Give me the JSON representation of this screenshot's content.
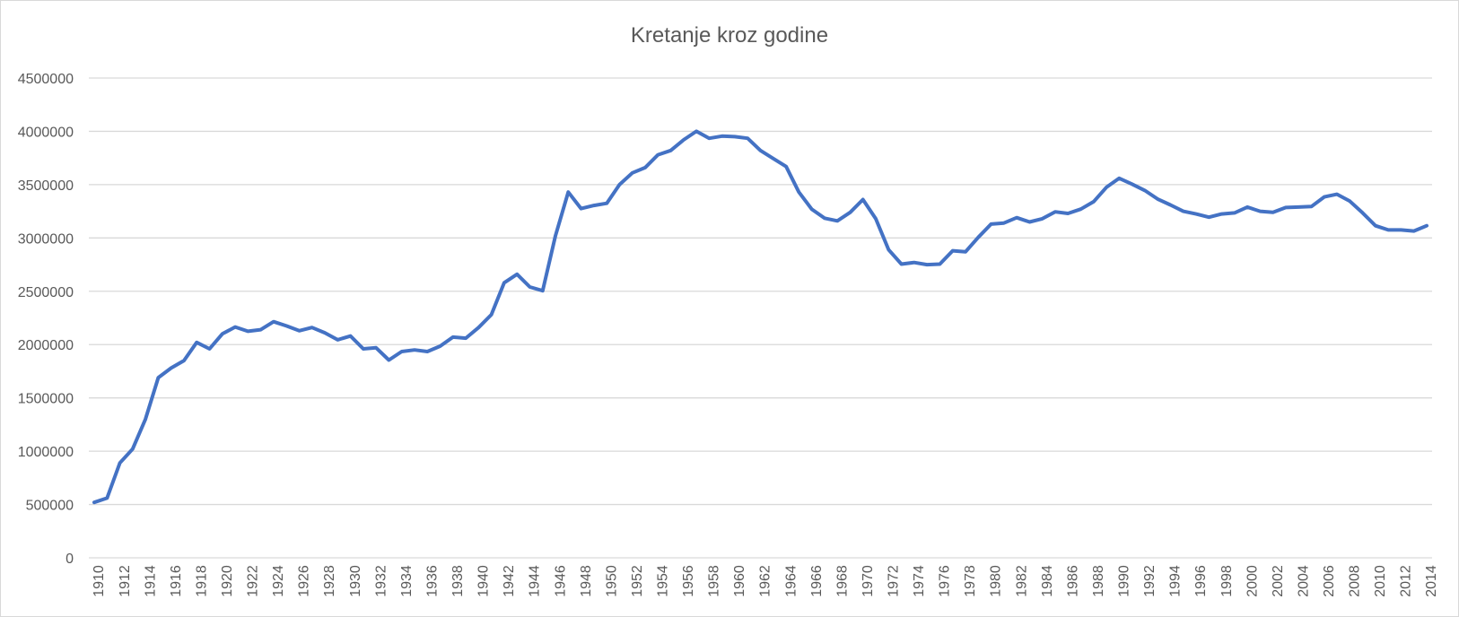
{
  "chart_data": {
    "type": "line",
    "title": "Kretanje kroz godine",
    "xlabel": "",
    "ylabel": "",
    "ylim": [
      0,
      4500000
    ],
    "y_ticks": [
      0,
      500000,
      1000000,
      1500000,
      2000000,
      2500000,
      3000000,
      3500000,
      4000000,
      4500000
    ],
    "grid": true,
    "legend": "none",
    "colors": {
      "series": "#4472c4",
      "grid": "#d9d9d9",
      "text": "#595959"
    },
    "x": [
      1910,
      1911,
      1912,
      1913,
      1914,
      1915,
      1916,
      1917,
      1918,
      1919,
      1920,
      1921,
      1922,
      1923,
      1924,
      1925,
      1926,
      1927,
      1928,
      1929,
      1930,
      1931,
      1932,
      1933,
      1934,
      1935,
      1936,
      1937,
      1938,
      1939,
      1940,
      1941,
      1942,
      1943,
      1944,
      1945,
      1946,
      1947,
      1948,
      1949,
      1950,
      1951,
      1952,
      1953,
      1954,
      1955,
      1956,
      1957,
      1958,
      1959,
      1960,
      1961,
      1962,
      1963,
      1964,
      1965,
      1966,
      1967,
      1968,
      1969,
      1970,
      1971,
      1972,
      1973,
      1974,
      1975,
      1976,
      1977,
      1978,
      1979,
      1980,
      1981,
      1982,
      1983,
      1984,
      1985,
      1986,
      1987,
      1988,
      1989,
      1990,
      1991,
      1992,
      1993,
      1994,
      1995,
      1996,
      1997,
      1998,
      1999,
      2000,
      2001,
      2002,
      2003,
      2004,
      2005,
      2006,
      2007,
      2008,
      2009,
      2010,
      2011,
      2012,
      2013,
      2014
    ],
    "x_tick_labels": [
      "1910",
      "1912",
      "1914",
      "1916",
      "1918",
      "1920",
      "1922",
      "1924",
      "1926",
      "1928",
      "1930",
      "1932",
      "1934",
      "1936",
      "1938",
      "1940",
      "1942",
      "1944",
      "1946",
      "1948",
      "1950",
      "1952",
      "1954",
      "1956",
      "1958",
      "1960",
      "1962",
      "1964",
      "1966",
      "1968",
      "1970",
      "1972",
      "1974",
      "1976",
      "1978",
      "1980",
      "1982",
      "1984",
      "1986",
      "1988",
      "1990",
      "1992",
      "1994",
      "1996",
      "1998",
      "2000",
      "2002",
      "2004",
      "2006",
      "2008",
      "2010",
      "2012",
      "2014"
    ],
    "series": [
      {
        "values": [
          520000,
          560000,
          890000,
          1020000,
          1300000,
          1690000,
          1780000,
          1850000,
          2020000,
          1960000,
          2100000,
          2165000,
          2125000,
          2140000,
          2215000,
          2175000,
          2130000,
          2160000,
          2110000,
          2045000,
          2080000,
          1960000,
          1970000,
          1855000,
          1935000,
          1950000,
          1935000,
          1985000,
          2070000,
          2060000,
          2160000,
          2280000,
          2580000,
          2660000,
          2540000,
          2505000,
          3020000,
          3430000,
          3275000,
          3305000,
          3325000,
          3500000,
          3610000,
          3660000,
          3780000,
          3820000,
          3920000,
          4000000,
          3935000,
          3955000,
          3950000,
          3935000,
          3820000,
          3745000,
          3670000,
          3430000,
          3270000,
          3185000,
          3160000,
          3240000,
          3360000,
          3180000,
          2890000,
          2755000,
          2770000,
          2750000,
          2755000,
          2880000,
          2870000,
          3005000,
          3130000,
          3140000,
          3190000,
          3150000,
          3180000,
          3245000,
          3230000,
          3270000,
          3340000,
          3475000,
          3560000,
          3505000,
          3445000,
          3365000,
          3310000,
          3250000,
          3225000,
          3195000,
          3225000,
          3235000,
          3290000,
          3250000,
          3240000,
          3285000,
          3290000,
          3295000,
          3385000,
          3410000,
          3345000,
          3235000,
          3115000,
          3075000,
          3075000,
          3065000,
          3115000
        ]
      }
    ]
  }
}
